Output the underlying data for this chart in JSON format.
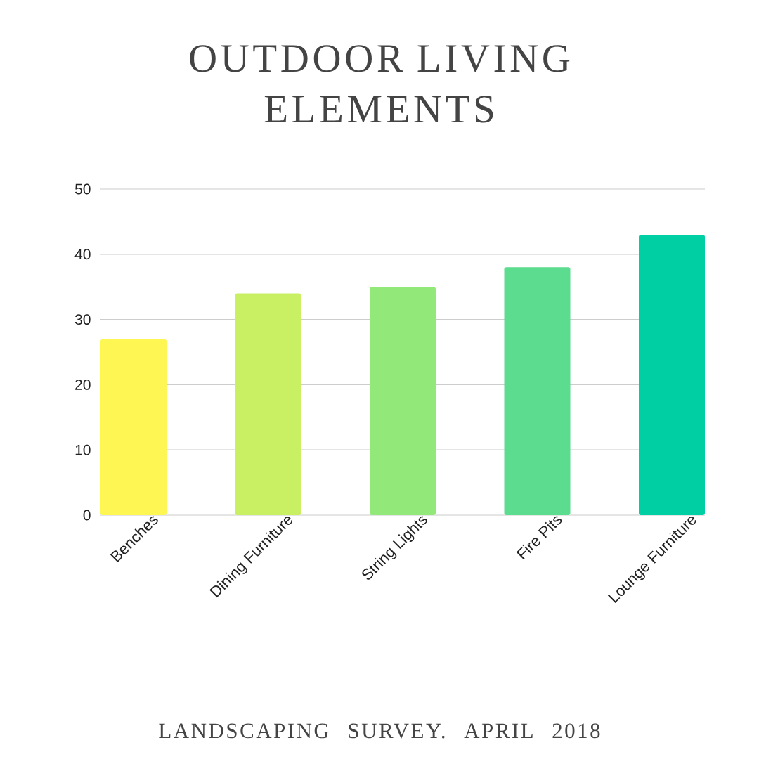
{
  "chart_data": {
    "type": "bar",
    "title": "OUTDOOR LIVING ELEMENTS",
    "categories": [
      "Benches",
      "Dining Furniture",
      "String Lights",
      "Fire Pits",
      "Lounge Furniture"
    ],
    "values": [
      27,
      34,
      35,
      38,
      43
    ],
    "colors": [
      "#fef653",
      "#c8f062",
      "#92e97a",
      "#5bdc8f",
      "#00cfa3"
    ],
    "ylim": [
      0,
      50
    ],
    "yticks": [
      0,
      10,
      20,
      30,
      40,
      50
    ],
    "grid": "y",
    "annotations": [
      "LANDSCAPING SURVEY. APRIL 2018"
    ]
  }
}
